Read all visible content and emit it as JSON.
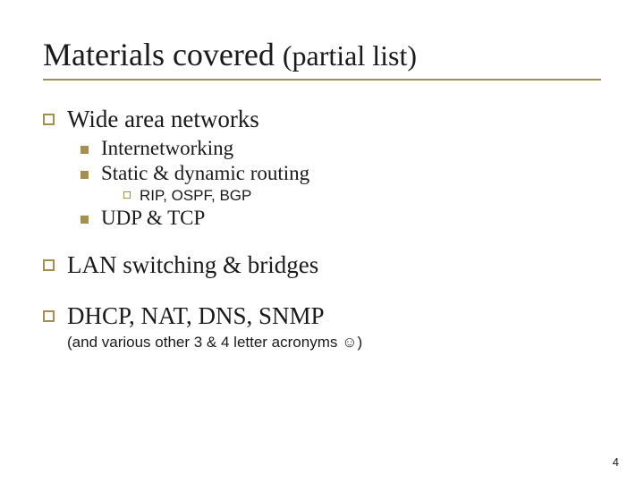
{
  "colors": {
    "accent": "#a38f52",
    "text": "#1a1a1a",
    "bg": "#ffffff"
  },
  "title": {
    "main": "Materials covered ",
    "sub": "(partial list)"
  },
  "items": {
    "l1a": "Wide area networks",
    "l2a": "Internetworking",
    "l2b": "Static & dynamic routing",
    "l3a": "RIP, OSPF, BGP",
    "l2c": "UDP & TCP",
    "l1b": "LAN switching & bridges",
    "l1c": "DHCP, NAT, DNS, SNMP",
    "note": "(and various other 3 & 4 letter acronyms ☺)"
  },
  "page_number": "4"
}
